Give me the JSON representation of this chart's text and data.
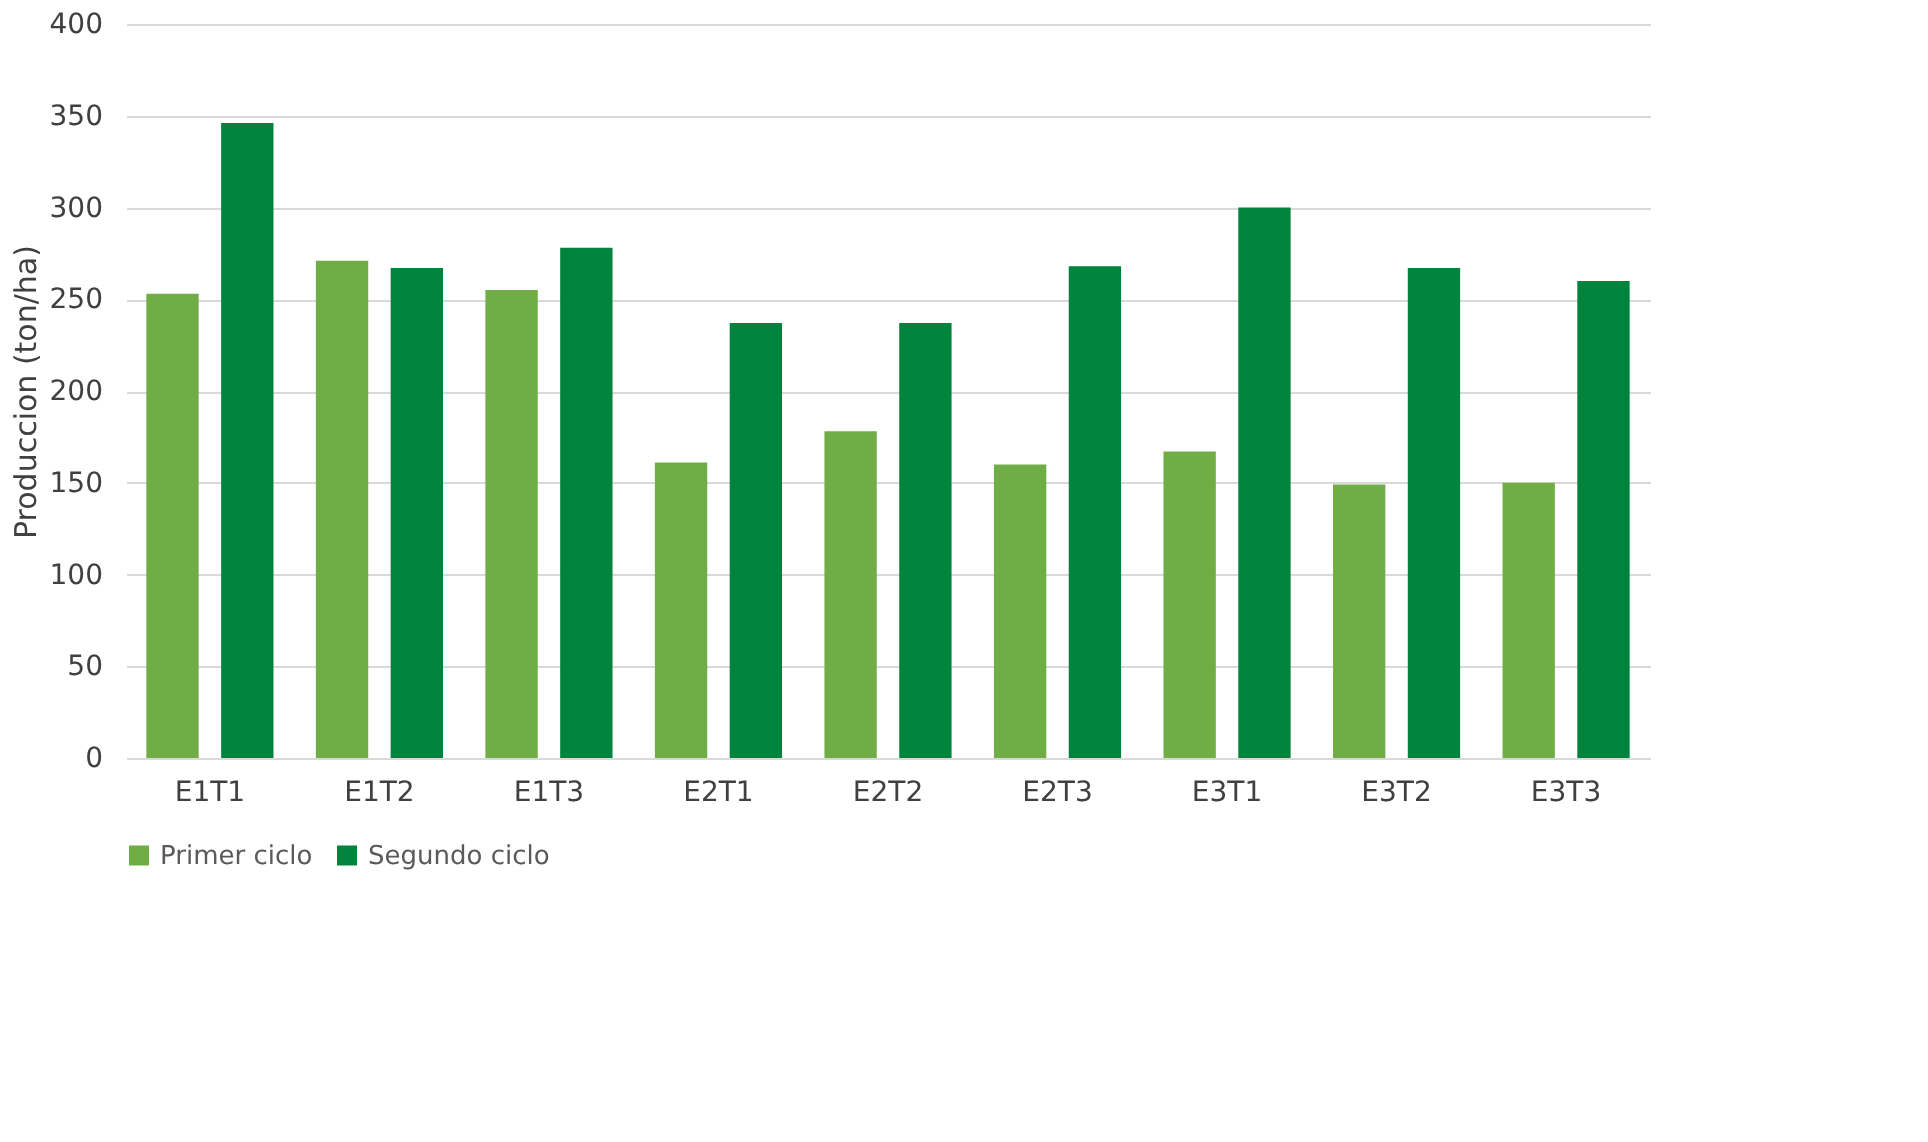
{
  "chart_data": {
    "type": "bar",
    "ylabel": "Produccion (ton/ha)",
    "categories": [
      "E1T1",
      "E1T2",
      "E1T3",
      "E2T1",
      "E2T2",
      "E2T3",
      "E3T1",
      "E3T2",
      "E3T3"
    ],
    "series": [
      {
        "name": "Primer ciclo",
        "color": "#70ad47",
        "values": [
          253,
          271,
          255,
          161,
          178,
          160,
          167,
          149,
          150
        ]
      },
      {
        "name": "Segundo ciclo",
        "color": "#00843d",
        "values": [
          346,
          267,
          278,
          237,
          237,
          268,
          300,
          267,
          260
        ]
      }
    ],
    "ylim": [
      0,
      400
    ],
    "yticks": [
      0,
      50,
      100,
      150,
      200,
      250,
      300,
      350,
      400
    ],
    "grid": "y",
    "legend": "bottom"
  }
}
